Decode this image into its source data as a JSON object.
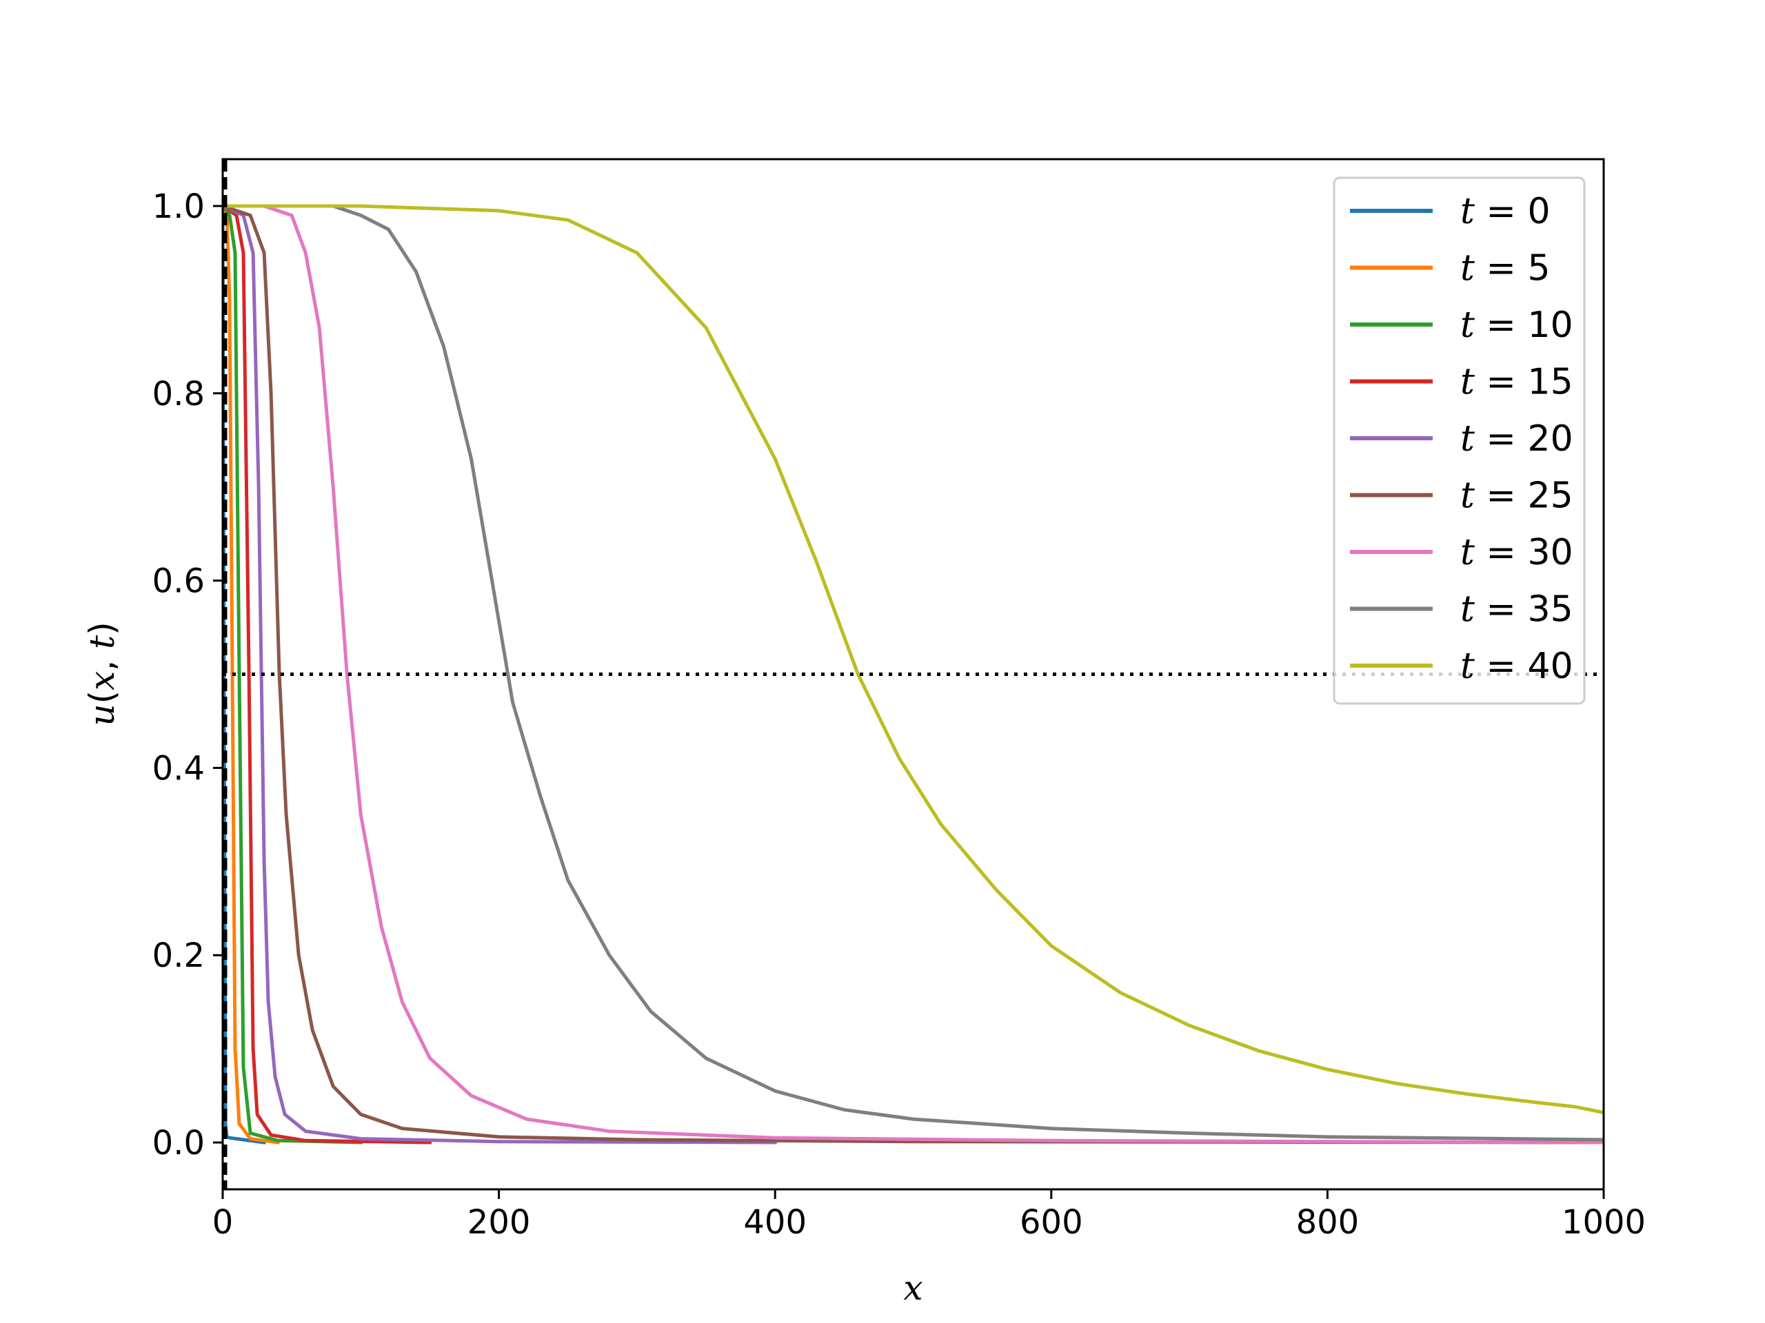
{
  "chart_data": {
    "type": "line",
    "xlabel": "x",
    "ylabel_parts": [
      "u",
      "(",
      "x",
      ", ",
      "t",
      ")"
    ],
    "xlim": [
      0,
      1000
    ],
    "ylim": [
      -0.05,
      1.05
    ],
    "xticks": [
      0,
      200,
      400,
      600,
      800,
      1000
    ],
    "xtick_labels": [
      "0",
      "200",
      "400",
      "600",
      "800",
      "1000"
    ],
    "yticks": [
      0.0,
      0.2,
      0.4,
      0.6,
      0.8,
      1.0
    ],
    "ytick_labels": [
      "0.0",
      "0.2",
      "0.4",
      "0.6",
      "0.8",
      "1.0"
    ],
    "grid": false,
    "legend_position": "top-right",
    "reference_lines": [
      {
        "orientation": "horizontal",
        "y": 0.5,
        "style": "dotted",
        "color": "#000000"
      },
      {
        "orientation": "vertical",
        "x": 0,
        "style": "dashed",
        "color": "#000000"
      }
    ],
    "series": [
      {
        "label_var": "t",
        "label_value": "0",
        "color": "#1f77b4",
        "points": [
          [
            0,
            1.0
          ],
          [
            1,
            0.5
          ],
          [
            2,
            0.02
          ],
          [
            3,
            0.006
          ],
          [
            5,
            0.005
          ],
          [
            10,
            0.004
          ],
          [
            30,
            0.0
          ]
        ]
      },
      {
        "label_var": "t",
        "label_value": "5",
        "color": "#ff7f0e",
        "points": [
          [
            0,
            1.0
          ],
          [
            3,
            0.99
          ],
          [
            5,
            0.9
          ],
          [
            7,
            0.5
          ],
          [
            9,
            0.1
          ],
          [
            12,
            0.02
          ],
          [
            20,
            0.004
          ],
          [
            40,
            0.0
          ]
        ]
      },
      {
        "label_var": "t",
        "label_value": "10",
        "color": "#2ca02c",
        "points": [
          [
            0,
            1.0
          ],
          [
            5,
            0.99
          ],
          [
            9,
            0.95
          ],
          [
            12,
            0.5
          ],
          [
            15,
            0.08
          ],
          [
            20,
            0.01
          ],
          [
            40,
            0.002
          ],
          [
            100,
            0.0
          ]
        ]
      },
      {
        "label_var": "t",
        "label_value": "15",
        "color": "#d62728",
        "points": [
          [
            0,
            1.0
          ],
          [
            10,
            0.99
          ],
          [
            15,
            0.95
          ],
          [
            19,
            0.5
          ],
          [
            22,
            0.1
          ],
          [
            25,
            0.03
          ],
          [
            35,
            0.008
          ],
          [
            60,
            0.002
          ],
          [
            150,
            0.0
          ]
        ]
      },
      {
        "label_var": "t",
        "label_value": "20",
        "color": "#9467bd",
        "points": [
          [
            0,
            1.0
          ],
          [
            15,
            0.99
          ],
          [
            22,
            0.95
          ],
          [
            26,
            0.7
          ],
          [
            30,
            0.3
          ],
          [
            33,
            0.15
          ],
          [
            38,
            0.07
          ],
          [
            45,
            0.03
          ],
          [
            60,
            0.012
          ],
          [
            100,
            0.004
          ],
          [
            200,
            0.001
          ],
          [
            400,
            0.0
          ]
        ]
      },
      {
        "label_var": "t",
        "label_value": "25",
        "color": "#8c564b",
        "points": [
          [
            0,
            1.0
          ],
          [
            20,
            0.99
          ],
          [
            30,
            0.95
          ],
          [
            35,
            0.8
          ],
          [
            41,
            0.5
          ],
          [
            46,
            0.35
          ],
          [
            55,
            0.2
          ],
          [
            65,
            0.12
          ],
          [
            80,
            0.06
          ],
          [
            100,
            0.03
          ],
          [
            130,
            0.015
          ],
          [
            200,
            0.006
          ],
          [
            300,
            0.003
          ],
          [
            500,
            0.001
          ],
          [
            1000,
            0.0
          ]
        ]
      },
      {
        "label_var": "t",
        "label_value": "30",
        "color": "#e377c2",
        "points": [
          [
            0,
            1.0
          ],
          [
            30,
            1.0
          ],
          [
            50,
            0.99
          ],
          [
            60,
            0.95
          ],
          [
            70,
            0.87
          ],
          [
            80,
            0.7
          ],
          [
            90,
            0.5
          ],
          [
            100,
            0.35
          ],
          [
            115,
            0.23
          ],
          [
            130,
            0.15
          ],
          [
            150,
            0.09
          ],
          [
            180,
            0.05
          ],
          [
            220,
            0.025
          ],
          [
            280,
            0.012
          ],
          [
            400,
            0.005
          ],
          [
            600,
            0.002
          ],
          [
            1000,
            0.0
          ]
        ]
      },
      {
        "label_var": "t",
        "label_value": "35",
        "color": "#7f7f7f",
        "points": [
          [
            0,
            1.0
          ],
          [
            80,
            1.0
          ],
          [
            100,
            0.99
          ],
          [
            120,
            0.975
          ],
          [
            140,
            0.93
          ],
          [
            160,
            0.85
          ],
          [
            180,
            0.73
          ],
          [
            195,
            0.6
          ],
          [
            210,
            0.47
          ],
          [
            230,
            0.37
          ],
          [
            250,
            0.28
          ],
          [
            280,
            0.2
          ],
          [
            310,
            0.14
          ],
          [
            350,
            0.09
          ],
          [
            400,
            0.055
          ],
          [
            450,
            0.035
          ],
          [
            500,
            0.025
          ],
          [
            600,
            0.015
          ],
          [
            700,
            0.01
          ],
          [
            800,
            0.006
          ],
          [
            1000,
            0.003
          ]
        ]
      },
      {
        "label_var": "t",
        "label_value": "40",
        "color": "#bcbd22",
        "points": [
          [
            0,
            1.0
          ],
          [
            100,
            1.0
          ],
          [
            200,
            0.995
          ],
          [
            250,
            0.985
          ],
          [
            300,
            0.95
          ],
          [
            350,
            0.87
          ],
          [
            400,
            0.73
          ],
          [
            430,
            0.62
          ],
          [
            460,
            0.5
          ],
          [
            490,
            0.41
          ],
          [
            520,
            0.34
          ],
          [
            560,
            0.27
          ],
          [
            600,
            0.21
          ],
          [
            650,
            0.16
          ],
          [
            700,
            0.125
          ],
          [
            750,
            0.098
          ],
          [
            800,
            0.078
          ],
          [
            850,
            0.063
          ],
          [
            900,
            0.052
          ],
          [
            950,
            0.043
          ],
          [
            980,
            0.038
          ],
          [
            1000,
            0.032
          ]
        ]
      }
    ]
  }
}
